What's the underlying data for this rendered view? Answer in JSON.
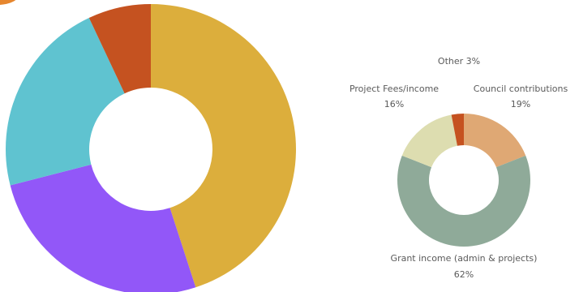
{
  "chart_data": [
    {
      "type": "pie",
      "variant": "donut",
      "categories": [
        "",
        "",
        "",
        ""
      ],
      "values": [
        45,
        26,
        22,
        7
      ],
      "colors": [
        "#dcae3c",
        "#9257f8",
        "#5fc3d0",
        "#c55220"
      ],
      "title": ""
    },
    {
      "type": "pie",
      "variant": "donut",
      "title": "",
      "categories": [
        "Council contributions",
        "Grant income (admin & projects)",
        "Project Fees/income",
        "Other"
      ],
      "values": [
        19,
        62,
        16,
        3
      ],
      "value_labels": [
        "19%",
        "62%",
        "16%",
        "3%"
      ],
      "colors": [
        "#dfa874",
        "#8faa99",
        "#ddddb0",
        "#c55220"
      ],
      "labels": {
        "other": "Other 3%",
        "project_fees_name": "Project Fees/income",
        "project_fees_value": "16%",
        "council_name": "Council contributions",
        "council_value": "19%",
        "grant_name": "Grant income (admin & projects)",
        "grant_value": "62%"
      }
    }
  ],
  "colors": {
    "header_accent": "#e6862e"
  }
}
